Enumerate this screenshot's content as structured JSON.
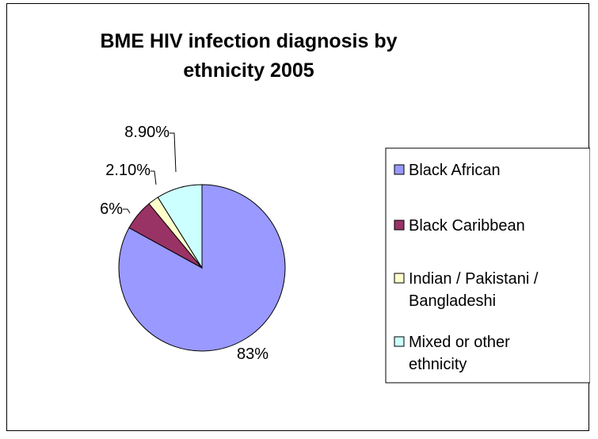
{
  "chart_data": {
    "type": "pie",
    "title_lines": [
      "BME HIV infection diagnosis by",
      "ethnicity 2005"
    ],
    "categories": [
      "Black African",
      "Black Caribbean",
      "Indian / Pakistani / Bangladeshi",
      "Mixed or other ethnicity"
    ],
    "legend_lines": [
      [
        "Black African"
      ],
      [
        "Black Caribbean"
      ],
      [
        "Indian / Pakistani /",
        "Bangladeshi"
      ],
      [
        "Mixed or other",
        "ethnicity"
      ]
    ],
    "values": [
      83,
      6,
      2.1,
      8.9
    ],
    "data_labels": [
      "83%",
      "6%",
      "2.10%",
      "8.90%"
    ],
    "colors": [
      "#9999FF",
      "#993366",
      "#FFFFCC",
      "#CCFFFF"
    ],
    "legend_position": "right"
  }
}
